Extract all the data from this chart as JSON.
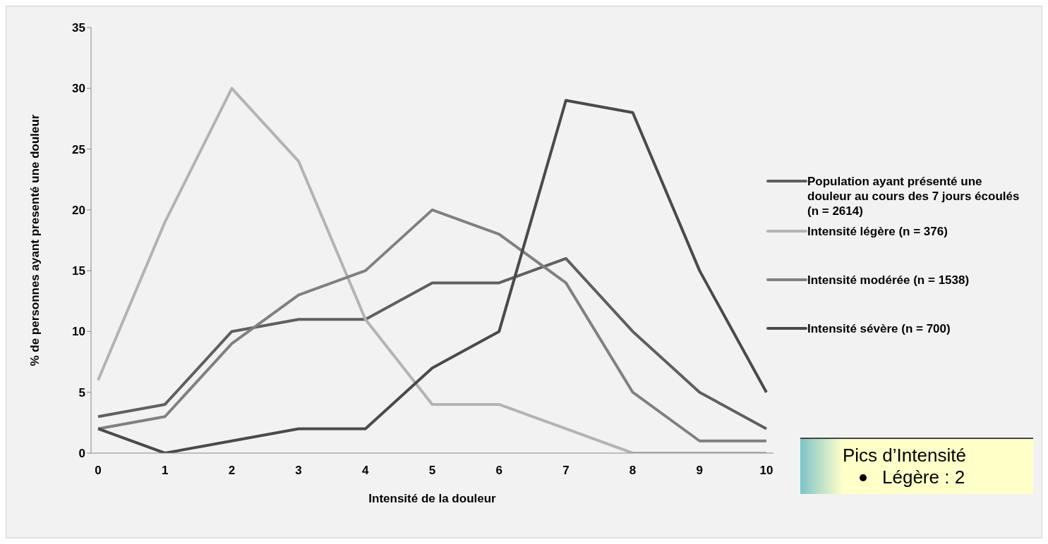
{
  "chart_data": {
    "type": "line",
    "xlabel": "Intensité de la douleur",
    "ylabel": "% de personnes ayant presenté une douleur",
    "categories": [
      "0",
      "1",
      "2",
      "3",
      "4",
      "5",
      "6",
      "7",
      "8",
      "9",
      "10"
    ],
    "series": [
      {
        "name": "Population ayant présenté une douleur au cours des 7 jours écoulés (n = 2614)",
        "color": "#5f5f5f",
        "values": [
          3,
          4,
          10,
          11,
          11,
          14,
          14,
          16,
          10,
          5,
          2
        ]
      },
      {
        "name": "Intensité légère (n = 376)",
        "color": "#b3b3b3",
        "values": [
          6,
          19,
          30,
          24,
          11,
          4,
          4,
          2,
          0,
          0,
          0
        ]
      },
      {
        "name": "Intensité modérée (n = 1538)",
        "color": "#808080",
        "values": [
          2,
          3,
          9,
          13,
          15,
          20,
          18,
          14,
          5,
          1,
          1
        ]
      },
      {
        "name": "Intensité sévère (n = 700)",
        "color": "#4a4a4a",
        "values": [
          2,
          0,
          1,
          2,
          2,
          7,
          10,
          29,
          28,
          15,
          5
        ]
      }
    ],
    "ylim": [
      0,
      35
    ],
    "yticks": [
      0,
      5,
      10,
      15,
      20,
      25,
      30,
      35
    ],
    "grid": false,
    "legend": "right",
    "marker": "none",
    "line_style": "solid",
    "annotations": [
      "Pics d’Intensité",
      "Légère : 2"
    ]
  }
}
